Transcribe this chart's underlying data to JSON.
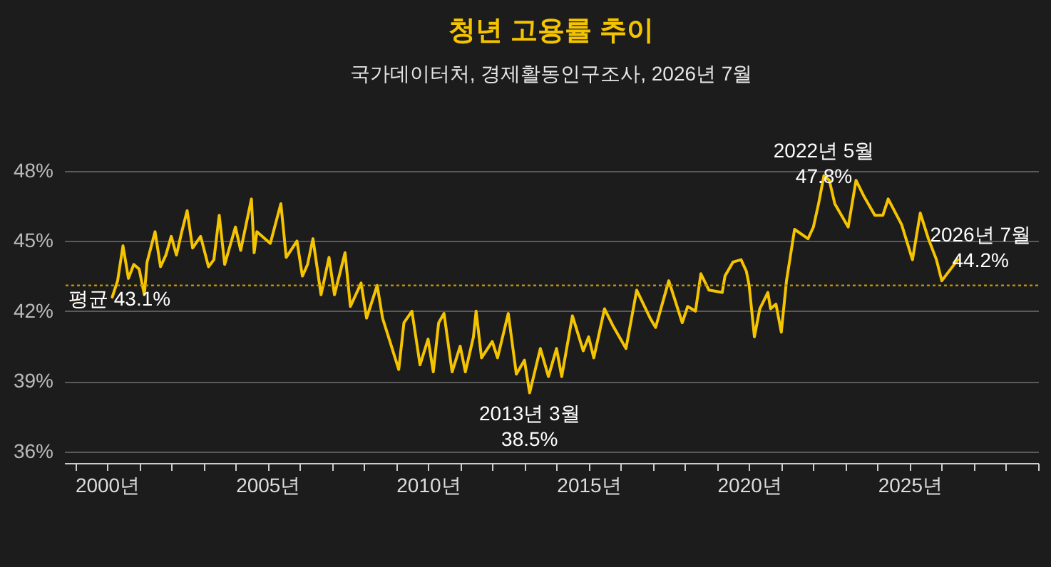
{
  "chart_data": {
    "type": "line",
    "title": "청년 고용률 추이",
    "subtitle": "국가데이터처, 경제활동인구조사, 2026년 7월",
    "x": [
      "2000-03",
      "2000-05",
      "2000-07",
      "2000-09",
      "2000-11",
      "2001-01",
      "2001-03",
      "2001-04",
      "2001-07",
      "2001-09",
      "2001-11",
      "2002-01",
      "2002-03",
      "2002-05",
      "2002-07",
      "2002-09",
      "2002-12",
      "2003-03",
      "2003-05",
      "2003-07",
      "2003-09",
      "2004-01",
      "2004-03",
      "2004-07",
      "2004-08",
      "2004-09",
      "2005-02",
      "2005-06",
      "2005-08",
      "2005-12",
      "2006-02",
      "2006-04",
      "2006-06",
      "2006-09",
      "2006-12",
      "2007-02",
      "2007-06",
      "2007-08",
      "2007-12",
      "2008-02",
      "2008-06",
      "2008-08",
      "2008-11",
      "2009-02",
      "2009-04",
      "2009-07",
      "2009-10",
      "2010-01",
      "2010-03",
      "2010-05",
      "2010-07",
      "2010-10",
      "2011-01",
      "2011-03",
      "2011-06",
      "2011-07",
      "2011-09",
      "2012-01",
      "2012-03",
      "2012-07",
      "2012-10",
      "2013-01",
      "2013-03",
      "2013-07",
      "2013-10",
      "2014-01",
      "2014-03",
      "2014-07",
      "2014-11",
      "2015-01",
      "2015-03",
      "2015-07",
      "2015-10",
      "2016-03",
      "2016-07",
      "2016-12",
      "2017-02",
      "2017-07",
      "2017-12",
      "2018-02",
      "2018-05",
      "2018-07",
      "2018-10",
      "2019-03",
      "2019-04",
      "2019-07",
      "2019-10",
      "2019-12",
      "2020-01",
      "2020-03",
      "2020-05",
      "2020-08",
      "2020-09",
      "2020-11",
      "2021-01",
      "2021-03",
      "2021-06",
      "2021-11",
      "2022-01",
      "2022-03",
      "2022-05",
      "2022-07",
      "2022-09",
      "2023-02",
      "2023-05",
      "2023-08",
      "2023-12",
      "2024-03",
      "2024-05",
      "2024-10",
      "2025-02",
      "2025-05",
      "2025-08",
      "2025-11",
      "2026-01",
      "2026-07"
    ],
    "series": [
      {
        "color": "#f5c400",
        "values": [
          42.6,
          43.3,
          44.8,
          43.4,
          44.0,
          43.8,
          42.7,
          44.1,
          45.4,
          43.9,
          44.4,
          45.2,
          44.4,
          45.4,
          46.3,
          44.7,
          45.2,
          43.9,
          44.2,
          46.1,
          44.0,
          45.6,
          44.6,
          46.8,
          44.5,
          45.4,
          44.9,
          46.6,
          44.3,
          45.0,
          43.5,
          44.0,
          45.1,
          42.7,
          44.3,
          42.7,
          44.5,
          42.2,
          43.2,
          41.7,
          43.1,
          41.7,
          40.6,
          39.5,
          41.5,
          42.0,
          39.7,
          40.8,
          39.4,
          41.5,
          41.9,
          39.4,
          40.5,
          39.4,
          40.9,
          42.0,
          40.0,
          40.7,
          40.0,
          41.9,
          39.3,
          39.9,
          38.5,
          40.4,
          39.2,
          40.4,
          39.2,
          41.8,
          40.3,
          40.9,
          40.0,
          42.1,
          41.4,
          40.4,
          42.9,
          41.7,
          41.3,
          43.3,
          41.5,
          42.2,
          42.0,
          43.6,
          42.9,
          42.8,
          43.5,
          44.1,
          44.2,
          43.7,
          43.1,
          40.9,
          42.1,
          42.8,
          42.1,
          42.3,
          41.1,
          43.3,
          45.5,
          45.1,
          45.6,
          46.6,
          47.8,
          47.6,
          46.6,
          45.6,
          47.6,
          46.9,
          46.1,
          46.1,
          46.8,
          45.7,
          44.2,
          46.2,
          45.1,
          44.2,
          43.3,
          44.2
        ]
      }
    ],
    "xlim": [
      "1998-09",
      "2029-01"
    ],
    "xticks": [
      {
        "value": "1999",
        "label": null
      },
      {
        "value": "2000",
        "label": "2000년"
      },
      {
        "value": "2001",
        "label": null
      },
      {
        "value": "2002",
        "label": null
      },
      {
        "value": "2003",
        "label": null
      },
      {
        "value": "2004",
        "label": null
      },
      {
        "value": "2005",
        "label": "2005년"
      },
      {
        "value": "2006",
        "label": null
      },
      {
        "value": "2007",
        "label": null
      },
      {
        "value": "2008",
        "label": null
      },
      {
        "value": "2009",
        "label": null
      },
      {
        "value": "2010",
        "label": "2010년"
      },
      {
        "value": "2011",
        "label": null
      },
      {
        "value": "2012",
        "label": null
      },
      {
        "value": "2013",
        "label": null
      },
      {
        "value": "2014",
        "label": null
      },
      {
        "value": "2015",
        "label": "2015년"
      },
      {
        "value": "2016",
        "label": null
      },
      {
        "value": "2017",
        "label": null
      },
      {
        "value": "2018",
        "label": null
      },
      {
        "value": "2019",
        "label": null
      },
      {
        "value": "2020",
        "label": "2020년"
      },
      {
        "value": "2021",
        "label": null
      },
      {
        "value": "2022",
        "label": null
      },
      {
        "value": "2023",
        "label": null
      },
      {
        "value": "2024",
        "label": null
      },
      {
        "value": "2025",
        "label": "2025년"
      },
      {
        "value": "2026",
        "label": null
      },
      {
        "value": "2027",
        "label": null
      },
      {
        "value": "2028",
        "label": null
      },
      {
        "value": "2029",
        "label": null
      }
    ],
    "ylim": [
      35.5,
      48
    ],
    "yticks": [
      {
        "value": 36,
        "label": "36%"
      },
      {
        "value": 39,
        "label": "39%"
      },
      {
        "value": 42,
        "label": "42%"
      },
      {
        "value": 45,
        "label": "45%"
      },
      {
        "value": 48,
        "label": "48%"
      }
    ],
    "grid": "y",
    "ref_lines": [
      {
        "axis": "y",
        "value": 43.1,
        "label": "평균 43.1%",
        "color": "#b8920a",
        "line_style": "dotted"
      }
    ],
    "annotations": [
      {
        "text": "2013년 3월\n38.5%",
        "x": "2013-03",
        "y": 38.5
      },
      {
        "text": "2022년 5월\n47.8%",
        "x": "2022-05",
        "y": 47.8
      },
      {
        "text": "2026년 7월\n44.2%",
        "x": "2026-07",
        "y": 44.2
      }
    ]
  }
}
